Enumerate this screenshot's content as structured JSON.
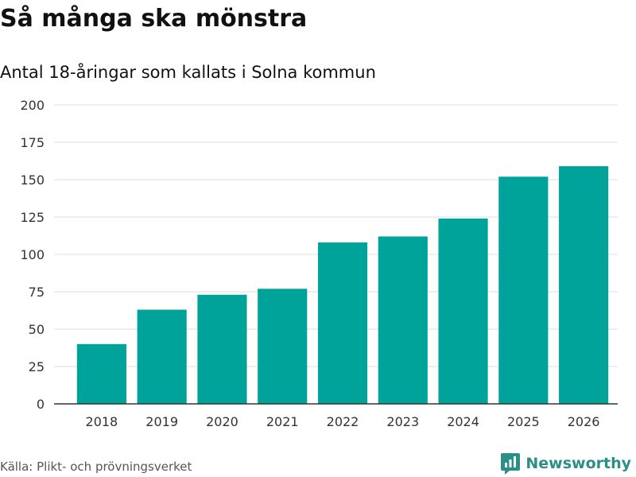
{
  "title": "Så många ska mönstra",
  "subtitle": "Antal 18-åringar som kallats i Solna kommun",
  "source": "Källa: Plikt- och prövningsverket",
  "brand": {
    "name": "Newsworthy",
    "icon": "newsworthy-logo-icon",
    "color": "#2b8f88"
  },
  "colors": {
    "bar": "#00a39a",
    "grid": "#dddddd",
    "axis": "#333333"
  },
  "chart_data": {
    "type": "bar",
    "title": "Så många ska mönstra",
    "subtitle": "Antal 18-åringar som kallats i Solna kommun",
    "xlabel": "",
    "ylabel": "",
    "categories": [
      "2018",
      "2019",
      "2020",
      "2021",
      "2022",
      "2023",
      "2024",
      "2025",
      "2026"
    ],
    "values": [
      40,
      63,
      73,
      77,
      108,
      112,
      124,
      152,
      159
    ],
    "ylim": [
      0,
      200
    ],
    "yticks": [
      0,
      25,
      50,
      75,
      100,
      125,
      150,
      175,
      200
    ],
    "grid": true,
    "legend": "none"
  }
}
